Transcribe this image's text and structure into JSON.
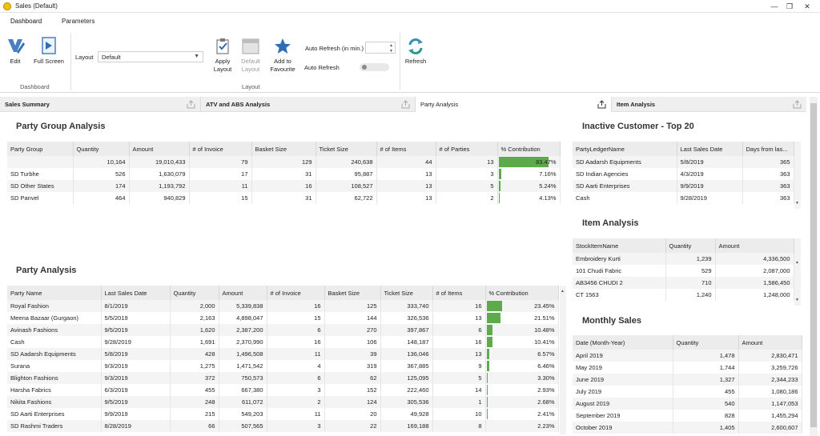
{
  "window": {
    "title": "Sales (Default)",
    "minimize": "—",
    "restore": "❐",
    "close": "✕"
  },
  "ribbon_tabs": [
    "Dashboard",
    "Parameters"
  ],
  "ribbon": {
    "edit": "Edit",
    "full_screen": "Full Screen",
    "dashboard_group": "Dashboard",
    "layout_label": "Layout",
    "layout_value": "Default",
    "apply_layout": [
      "Apply",
      "Layout"
    ],
    "default_layout": [
      "Default",
      "Layout"
    ],
    "add_favourite": [
      "Add to",
      "Favourite"
    ],
    "layout_group": "Layout",
    "auto_refresh_min": "Auto Refresh (in min.)",
    "auto_refresh": "Auto Refresh",
    "refresh": "Refresh"
  },
  "panel_tabs": [
    "Sales Summary",
    "ATV and ABS Analysis",
    "Party Analysis",
    "Item Analysis"
  ],
  "party_group": {
    "title": "Party Group Analysis",
    "columns": [
      "Party Group",
      "Quantity",
      "Amount",
      "# of Invoice",
      "Basket Size",
      "Ticket Size",
      "# of Items",
      "# of Parties",
      "% Contribution"
    ],
    "rows": [
      [
        "",
        "10,164",
        "19,010,433",
        "79",
        "129",
        "240,638",
        "44",
        "13",
        "83.47%"
      ],
      [
        "SD Turbhe",
        "526",
        "1,630,079",
        "17",
        "31",
        "95,887",
        "13",
        "3",
        "7.16%"
      ],
      [
        "SD Other States",
        "174",
        "1,193,792",
        "11",
        "16",
        "108,527",
        "13",
        "5",
        "5.24%"
      ],
      [
        "SD Panvel",
        "464",
        "940,829",
        "15",
        "31",
        "62,722",
        "13",
        "2",
        "4.13%"
      ]
    ],
    "contrib": [
      83.47,
      7.16,
      5.24,
      4.13
    ]
  },
  "party_analysis": {
    "title": "Party Analysis",
    "columns": [
      "Party Name",
      "Last Sales Date",
      "Quantity",
      "Amount",
      "# of Invoice",
      "Basket Size",
      "Ticket Size",
      "# of Items",
      "% Contribution"
    ],
    "rows": [
      [
        "Royal Fashion",
        "8/1/2019",
        "2,000",
        "5,339,838",
        "16",
        "125",
        "333,740",
        "16",
        "23.45%"
      ],
      [
        "Meena Bazaar (Gurgaon)",
        "5/5/2019",
        "2,163",
        "4,898,047",
        "15",
        "144",
        "326,536",
        "13",
        "21.51%"
      ],
      [
        "Avinash Fashions",
        "9/5/2019",
        "1,620",
        "2,387,200",
        "6",
        "270",
        "397,867",
        "6",
        "10.48%"
      ],
      [
        "Cash",
        "9/28/2019",
        "1,691",
        "2,370,990",
        "16",
        "106",
        "148,187",
        "16",
        "10.41%"
      ],
      [
        "SD Aadarsh Equipments",
        "5/8/2019",
        "428",
        "1,496,508",
        "11",
        "39",
        "136,046",
        "13",
        "6.57%"
      ],
      [
        "Surana",
        "9/3/2019",
        "1,275",
        "1,471,542",
        "4",
        "319",
        "367,885",
        "9",
        "6.46%"
      ],
      [
        "Blighton Fashions",
        "9/3/2019",
        "372",
        "750,573",
        "6",
        "62",
        "125,095",
        "5",
        "3.30%"
      ],
      [
        "Harsha Fabrics",
        "6/3/2019",
        "455",
        "667,380",
        "3",
        "152",
        "222,460",
        "14",
        "2.93%"
      ],
      [
        "Nikita Fashions",
        "9/5/2019",
        "248",
        "611,072",
        "2",
        "124",
        "305,536",
        "1",
        "2.68%"
      ],
      [
        "SD Aarti Enterprises",
        "9/9/2019",
        "215",
        "549,203",
        "11",
        "20",
        "49,928",
        "10",
        "2.41%"
      ],
      [
        "SD Rashmi Traders",
        "8/28/2019",
        "66",
        "507,565",
        "3",
        "22",
        "169,188",
        "8",
        "2.23%"
      ]
    ],
    "contrib": [
      23.45,
      21.51,
      10.48,
      10.41,
      6.57,
      6.46,
      3.3,
      2.93,
      2.68,
      2.41,
      2.23
    ]
  },
  "inactive": {
    "title": "Inactive Customer - Top 20",
    "columns": [
      "PartyLedgerName",
      "Last Sales Date",
      "Days from las..."
    ],
    "rows": [
      [
        "SD Aadarsh Equipments",
        "5/8/2019",
        "365"
      ],
      [
        "SD Indian Agencies",
        "4/3/2019",
        "363"
      ],
      [
        "SD Aarti Enterprises",
        "9/9/2019",
        "363"
      ],
      [
        "Cash",
        "9/28/2019",
        "363"
      ]
    ]
  },
  "item_analysis": {
    "title": "Item Analysis",
    "columns": [
      "StockItemName",
      "Quantity",
      "Amount"
    ],
    "rows": [
      [
        "Embroidery Kurti",
        "1,239",
        "4,336,500"
      ],
      [
        "101 Chudi Fabric",
        "529",
        "2,087,000"
      ],
      [
        "AB3456 CHUDI 2",
        "710",
        "1,586,450"
      ],
      [
        "CT 1563",
        "1,240",
        "1,248,000"
      ]
    ]
  },
  "monthly": {
    "title": "Monthly Sales",
    "columns": [
      "Date (Month-Year)",
      "Quantity",
      "Amount"
    ],
    "rows": [
      [
        "April 2019",
        "1,478",
        "2,830,471"
      ],
      [
        "May 2019",
        "1,744",
        "3,259,726"
      ],
      [
        "June 2019",
        "1,327",
        "2,344,233"
      ],
      [
        "July 2019",
        "455",
        "1,080,186"
      ],
      [
        "August 2019",
        "540",
        "1,147,053"
      ],
      [
        "September 2019",
        "828",
        "1,455,294"
      ],
      [
        "October 2019",
        "1,405",
        "2,600,607"
      ]
    ]
  }
}
